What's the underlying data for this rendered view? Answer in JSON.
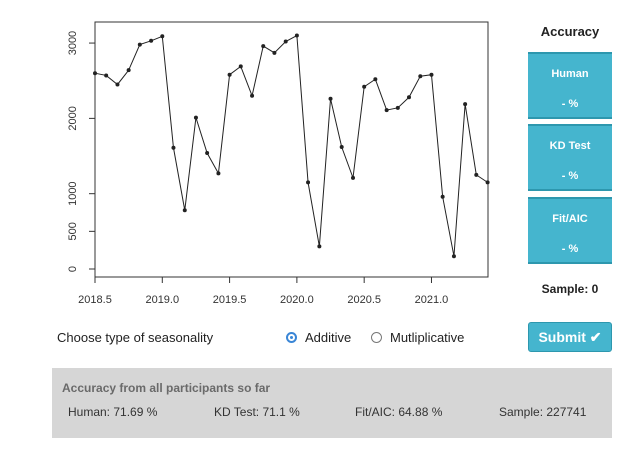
{
  "chart_data": {
    "type": "line",
    "x_ticks": [
      "2018.5",
      "2019.0",
      "2019.5",
      "2020.0",
      "2020.5",
      "2021.0"
    ],
    "y_ticks": [
      "0",
      "500",
      "1000",
      "2000",
      "3000"
    ],
    "xlim": [
      2018.5,
      2021.42
    ],
    "ylim": [
      0,
      3200
    ],
    "x": [
      2018.5,
      2018.583,
      2018.667,
      2018.75,
      2018.833,
      2018.917,
      2019.0,
      2019.083,
      2019.167,
      2019.25,
      2019.333,
      2019.417,
      2019.5,
      2019.583,
      2019.667,
      2019.75,
      2019.833,
      2019.917,
      2020.0,
      2020.083,
      2020.167,
      2020.25,
      2020.333,
      2020.417,
      2020.5,
      2020.583,
      2020.667,
      2020.75,
      2020.833,
      2020.917,
      2021.0,
      2021.083,
      2021.167,
      2021.25,
      2021.333,
      2021.417
    ],
    "y": [
      2600,
      2570,
      2450,
      2640,
      2980,
      3030,
      3090,
      1610,
      780,
      2010,
      1540,
      1270,
      2580,
      2690,
      2300,
      2960,
      2870,
      3020,
      3100,
      1150,
      300,
      2260,
      1620,
      1210,
      2420,
      2520,
      2110,
      2140,
      2280,
      2560,
      2580,
      960,
      170,
      2190,
      1250,
      1150
    ]
  },
  "sidebar": {
    "title": "Accuracy",
    "metrics": [
      {
        "label": "Human",
        "value": "- %"
      },
      {
        "label": "KD Test",
        "value": "- %"
      },
      {
        "label": "Fit/AIC",
        "value": "- %"
      }
    ],
    "sample": "Sample: 0"
  },
  "controls": {
    "choose_label": "Choose type of seasonality",
    "options": [
      {
        "label": "Additive",
        "selected": true
      },
      {
        "label": "Mutliplicative",
        "selected": false
      }
    ],
    "submit_label": "Submit ✔"
  },
  "footer": {
    "heading": "Accuracy from all participants so far",
    "human": "Human: 71.69 %",
    "kd": "KD Test: 71.1 %",
    "fit": "Fit/AIC: 64.88 %",
    "sample": "Sample: 227741"
  },
  "colors": {
    "accent": "#45b5ce",
    "footer_bg": "#d6d6d6"
  }
}
